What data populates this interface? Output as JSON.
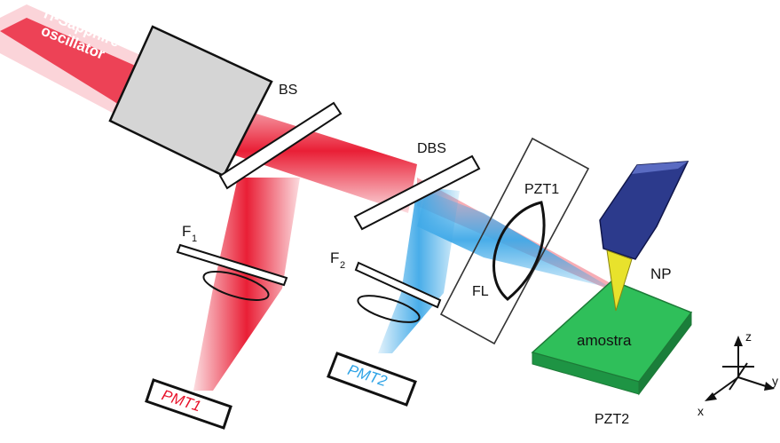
{
  "colors": {
    "red_beam": "#e8132b",
    "blue_beam": "#3fa9e8",
    "box_gray": "#d5d5d5",
    "stage_green": "#2fbf5a",
    "probe_blue": "#2c3a8c",
    "probe_tip_yellow": "#e8e22c"
  },
  "labels": {
    "source_line1": "Ti-Sapphire",
    "source_line2": "oscillator",
    "bs": "BS",
    "dbs": "DBS",
    "f1_main": "F",
    "f1_sub": "1",
    "f2_main": "F",
    "f2_sub": "2",
    "pzt1": "PZT1",
    "fl": "FL",
    "np": "NP",
    "sample": "amostra",
    "pzt2": "PZT2",
    "pmt1": "PMT1",
    "pmt2": "PMT2",
    "axis_z": "z",
    "axis_x": "x",
    "axis_y": "y"
  }
}
